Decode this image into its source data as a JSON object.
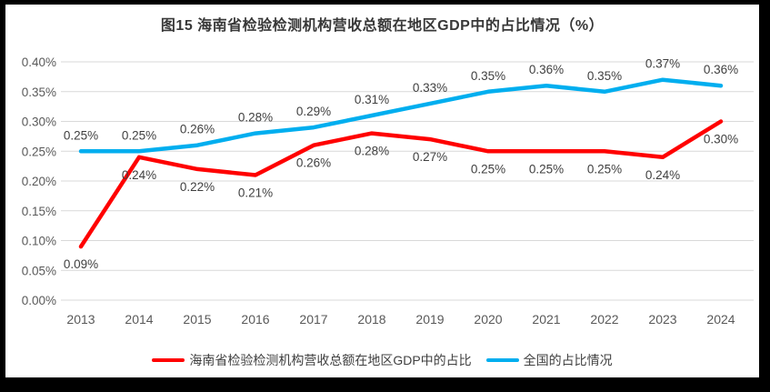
{
  "title": "图15 海南省检验检测机构营收总额在地区GDP中的占比情况（%）",
  "chart_data": {
    "type": "line",
    "categories": [
      "2013",
      "2014",
      "2015",
      "2016",
      "2017",
      "2018",
      "2019",
      "2020",
      "2021",
      "2022",
      "2023",
      "2024"
    ],
    "series": [
      {
        "name": "海南省检验检测机构营收总额在地区GDP中的占比",
        "color": "#FF0000",
        "label_position": "below",
        "values": [
          0.09,
          0.24,
          0.22,
          0.21,
          0.26,
          0.28,
          0.27,
          0.25,
          0.25,
          0.25,
          0.24,
          0.3
        ],
        "labels": [
          "0.09%",
          "0.24%",
          "0.22%",
          "0.21%",
          "0.26%",
          "0.28%",
          "0.27%",
          "0.25%",
          "0.25%",
          "0.25%",
          "0.24%",
          "0.30%"
        ]
      },
      {
        "name": "全国的占比情况",
        "color": "#00AEEF",
        "label_position": "above",
        "values": [
          0.25,
          0.25,
          0.26,
          0.28,
          0.29,
          0.31,
          0.33,
          0.35,
          0.36,
          0.35,
          0.37,
          0.36
        ],
        "labels": [
          "0.25%",
          "0.25%",
          "0.26%",
          "0.28%",
          "0.29%",
          "0.31%",
          "0.33%",
          "0.35%",
          "0.36%",
          "0.35%",
          "0.37%",
          "0.36%"
        ]
      }
    ],
    "xlabel": "",
    "ylabel": "",
    "ylim": [
      0,
      0.4
    ],
    "ytick_step": 0.05,
    "ytick_labels": [
      "0.00%",
      "0.05%",
      "0.10%",
      "0.15%",
      "0.20%",
      "0.25%",
      "0.30%",
      "0.35%",
      "0.40%"
    ],
    "grid": true,
    "legend_position": "bottom",
    "gridline_color": "#D9D9D9",
    "axis_text_color": "#595959",
    "data_label_color": "#3f3f3f"
  }
}
